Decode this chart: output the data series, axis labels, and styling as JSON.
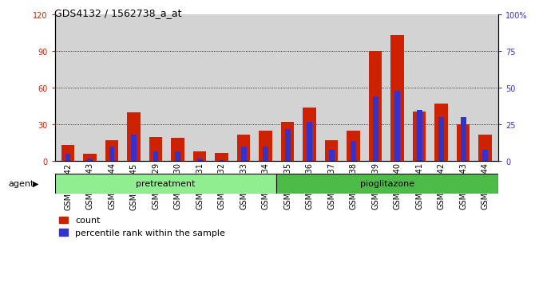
{
  "title": "GDS4132 / 1562738_a_at",
  "categories": [
    "GSM201542",
    "GSM201543",
    "GSM201544",
    "GSM201545",
    "GSM201829",
    "GSM201830",
    "GSM201831",
    "GSM201832",
    "GSM201833",
    "GSM201834",
    "GSM201835",
    "GSM201836",
    "GSM201837",
    "GSM201838",
    "GSM201839",
    "GSM201840",
    "GSM201841",
    "GSM201842",
    "GSM201843",
    "GSM201844"
  ],
  "count_values": [
    13,
    6,
    17,
    40,
    20,
    19,
    8,
    7,
    22,
    25,
    32,
    44,
    17,
    25,
    90,
    103,
    41,
    47,
    30,
    22
  ],
  "percentile_values": [
    5,
    2,
    10,
    18,
    7,
    7,
    2,
    1,
    10,
    10,
    22,
    27,
    8,
    14,
    44,
    48,
    35,
    30,
    30,
    8
  ],
  "pretreatment_count": 10,
  "pioglitazone_count": 10,
  "group_labels": [
    "pretreatment",
    "pioglitazone"
  ],
  "pretreatment_color": "#90EE90",
  "pioglitazone_color": "#4CBB47",
  "bar_color_count": "#CC2200",
  "bar_color_percentile": "#3333CC",
  "ylim_left": [
    0,
    120
  ],
  "ylim_right": [
    0,
    100
  ],
  "yticks_left": [
    0,
    30,
    60,
    90,
    120
  ],
  "yticks_right": [
    0,
    25,
    50,
    75,
    100
  ],
  "ytick_labels_right": [
    "0",
    "25",
    "50",
    "75",
    "100%"
  ],
  "agent_label": "agent",
  "legend_count": "count",
  "legend_percentile": "percentile rank within the sample",
  "plot_bg_color": "#D3D3D3",
  "bar_width": 0.6,
  "pct_bar_width": 0.25,
  "grid_yticks": [
    30,
    60,
    90
  ],
  "title_fontsize": 9,
  "tick_fontsize": 7,
  "group_fontsize": 8,
  "legend_fontsize": 8
}
